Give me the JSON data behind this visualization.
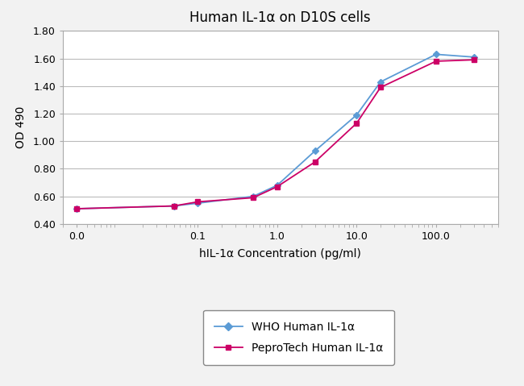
{
  "title": "Human IL-1α on D10S cells",
  "xlabel": "hIL-1α Concentration (pg/ml)",
  "ylabel": "OD 490",
  "ylim": [
    0.4,
    1.8
  ],
  "yticks": [
    0.4,
    0.6,
    0.8,
    1.0,
    1.2,
    1.4,
    1.6,
    1.8
  ],
  "who_x": [
    0.003,
    0.05,
    0.1,
    0.5,
    1.0,
    3.0,
    10.0,
    20.0,
    100.0,
    300.0
  ],
  "who_y": [
    0.51,
    0.53,
    0.55,
    0.6,
    0.68,
    0.93,
    1.19,
    1.43,
    1.63,
    1.61
  ],
  "peprotech_x": [
    0.003,
    0.05,
    0.1,
    0.5,
    1.0,
    3.0,
    10.0,
    20.0,
    100.0,
    300.0
  ],
  "peprotech_y": [
    0.51,
    0.53,
    0.56,
    0.59,
    0.67,
    0.85,
    1.13,
    1.39,
    1.58,
    1.59
  ],
  "who_color": "#5B9BD5",
  "peprotech_color": "#CC0066",
  "who_label": "WHO Human IL-1α",
  "peprotech_label": "PeproTech Human IL-1α",
  "background_color": "#F2F2F2",
  "plot_bg_color": "#FFFFFF",
  "grid_color": "#BBBBBB",
  "title_fontsize": 12,
  "label_fontsize": 10,
  "tick_fontsize": 9,
  "legend_fontsize": 10,
  "xtick_positions": [
    0.003,
    0.1,
    1.0,
    10.0,
    100.0
  ],
  "xtick_labels": [
    "0.0",
    "0.1",
    "1.0",
    "10.0",
    "100.0"
  ],
  "xlim": [
    0.002,
    600
  ]
}
